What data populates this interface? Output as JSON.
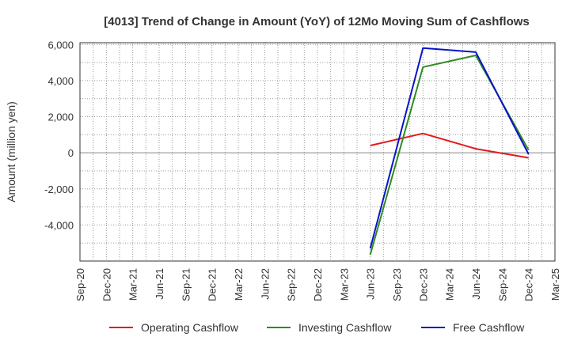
{
  "chart_data": {
    "type": "line",
    "title": "[4013]  Trend of Change in Amount (YoY) of 12Mo Moving Sum of Cashflows",
    "xlabel": "",
    "ylabel": "Amount (million yen)",
    "ylim": [
      -6000,
      6100
    ],
    "yticks": [
      6000,
      4000,
      2000,
      0,
      -2000,
      -4000
    ],
    "ytick_labels": [
      "6,000",
      "4,000",
      "2,000",
      "0",
      "-2,000",
      "-4,000"
    ],
    "categories": [
      "Sep-20",
      "Dec-20",
      "Mar-21",
      "Jun-21",
      "Sep-21",
      "Dec-21",
      "Mar-22",
      "Jun-22",
      "Sep-22",
      "Dec-22",
      "Mar-23",
      "Jun-23",
      "Sep-23",
      "Dec-23",
      "Mar-24",
      "Jun-24",
      "Sep-24",
      "Dec-24",
      "Mar-25"
    ],
    "grid": true,
    "legend_position": "bottom",
    "series": [
      {
        "name": "Operating Cashflow",
        "color": "#e31a1c",
        "points": [
          [
            "Jun-23",
            400
          ],
          [
            "Dec-23",
            1070
          ],
          [
            "Jun-24",
            220
          ],
          [
            "Dec-24",
            -280
          ]
        ]
      },
      {
        "name": "Investing Cashflow",
        "color": "#2e8b22",
        "points": [
          [
            "Jun-23",
            -5650
          ],
          [
            "Dec-23",
            4750
          ],
          [
            "Jun-24",
            5400
          ],
          [
            "Dec-24",
            150
          ]
        ]
      },
      {
        "name": "Free Cashflow",
        "color": "#0a14c8",
        "points": [
          [
            "Jun-23",
            -5300
          ],
          [
            "Dec-23",
            5800
          ],
          [
            "Jun-24",
            5580
          ],
          [
            "Dec-24",
            -80
          ]
        ]
      }
    ]
  }
}
